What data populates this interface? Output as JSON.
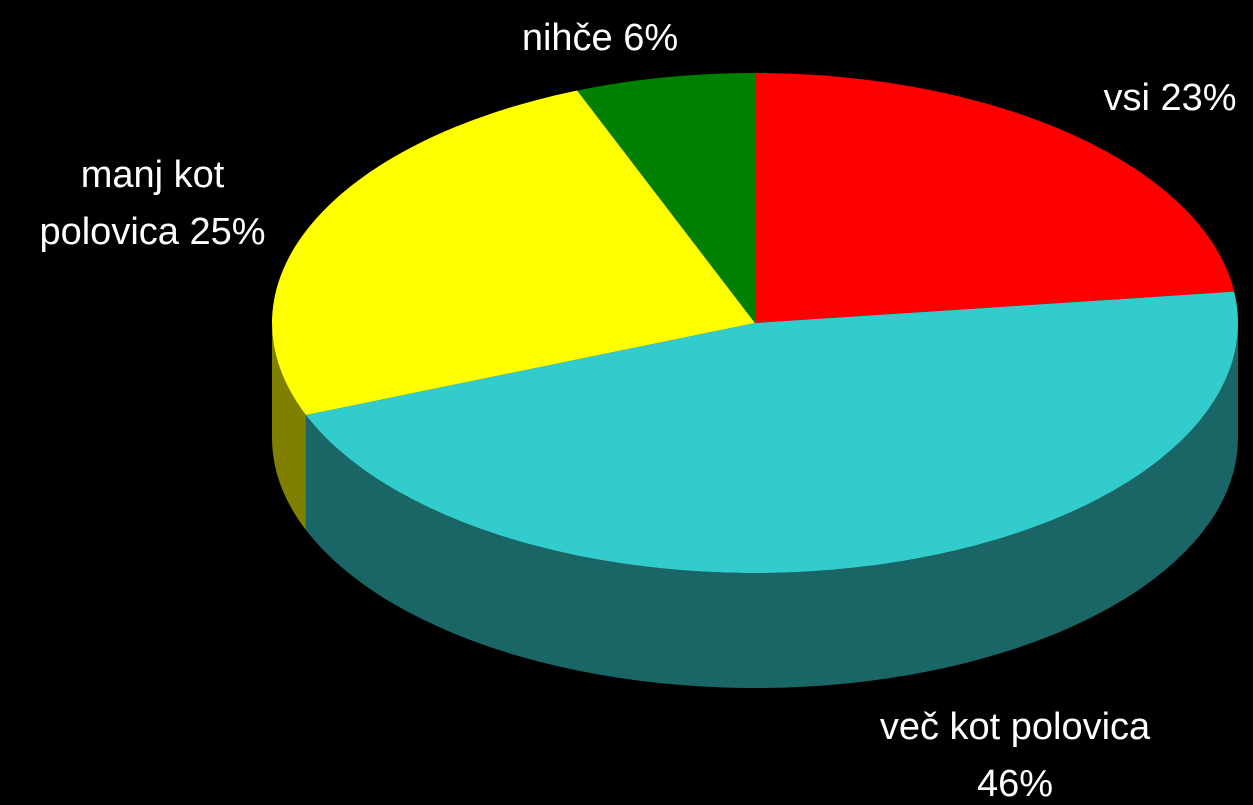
{
  "chart_data": {
    "type": "pie",
    "categories": [
      "vsi",
      "več kot polovica",
      "manj kot polovica",
      "nihče"
    ],
    "values": [
      23,
      46,
      25,
      6
    ],
    "value_labels": [
      "23%",
      "46%",
      "25%",
      "6%"
    ],
    "colors": [
      "#ff0000",
      "#33cccc",
      "#ffff00",
      "#008000"
    ]
  }
}
